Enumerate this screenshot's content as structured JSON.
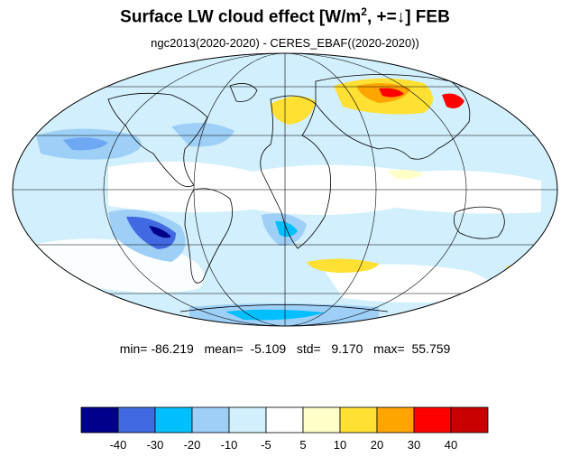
{
  "title": {
    "main": "Surface LW cloud effect [W/m",
    "sup": "2",
    "rest": ", +=↓]  FEB"
  },
  "subtitle": "ngc2013(2020-2020) - CERES_EBAF((2020-2020))",
  "stats": {
    "min_label": "min=",
    "min": "-86.219",
    "mean_label": "mean=",
    "mean": "-5.109",
    "std_label": "std=",
    "std": "9.170",
    "max_label": "max=",
    "max": "55.759"
  },
  "colorbar": {
    "colors": [
      "#00008b",
      "#4169e1",
      "#00bfff",
      "#9ecff7",
      "#d1effc",
      "#ffffff",
      "#ffffc8",
      "#ffe033",
      "#ffa500",
      "#ff0000",
      "#c80000"
    ],
    "labels": [
      "-40",
      "-30",
      "-20",
      "-10",
      "-5",
      "5",
      "10",
      "20",
      "30",
      "40"
    ]
  },
  "map": {
    "projection": "mollweide",
    "ocean_color": "#ffffff",
    "graticule_color": "#000000"
  }
}
